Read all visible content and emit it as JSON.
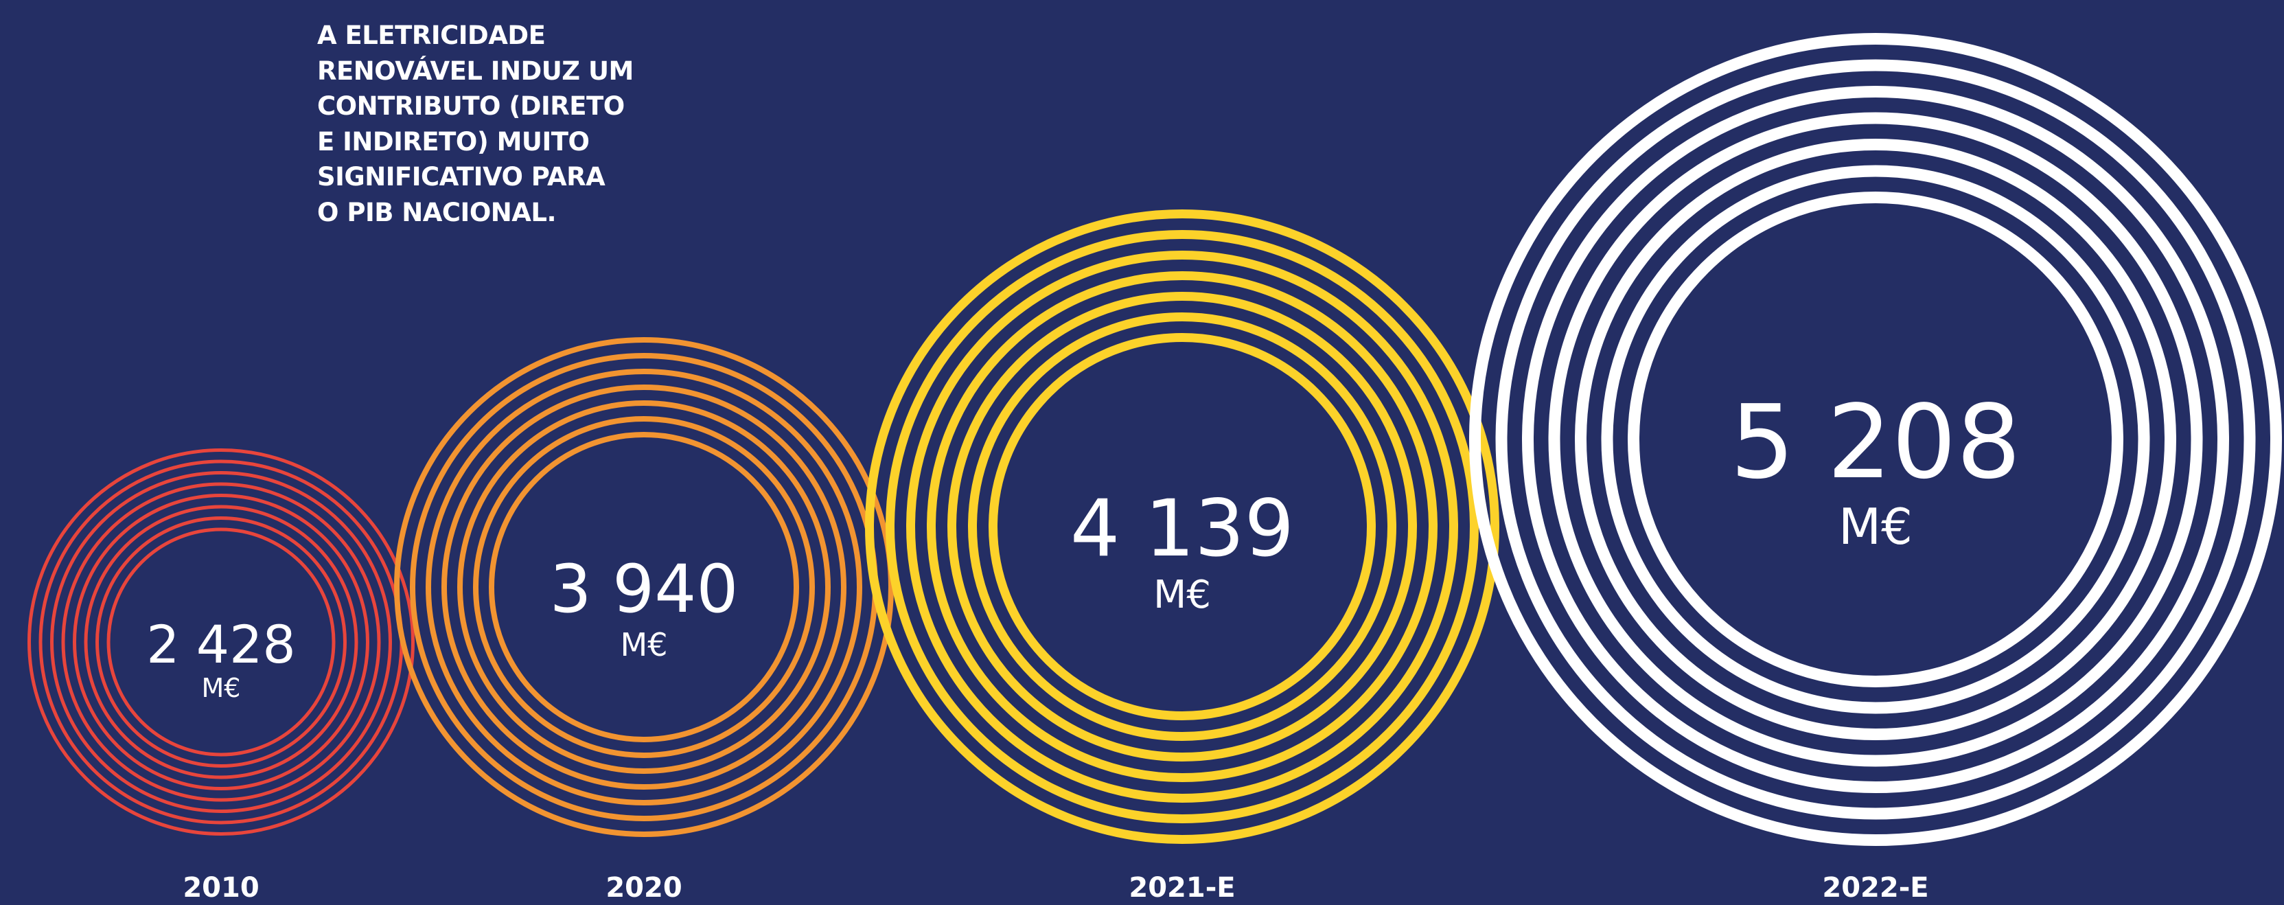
{
  "headline": "A ELETRICIDADE\nRENOVÁVEL INDUZ UM\nCONTRIBUTO (DIRETO\nE INDIRETO) MUITO\nSIGNIFICATIVO PARA\nO PIB NACIONAL.",
  "chart_data": {
    "type": "bubble",
    "unit": "M€",
    "categories": [
      "2010",
      "2020",
      "2021-E",
      "2022-E"
    ],
    "values": [
      2428,
      3940,
      4139,
      5208
    ],
    "value_labels": [
      "2 428",
      "3 940",
      "4 139",
      "5 208"
    ],
    "colors": [
      "#e8453c",
      "#f29431",
      "#fcd22a",
      "#ffffff"
    ],
    "background": "#242e64"
  }
}
